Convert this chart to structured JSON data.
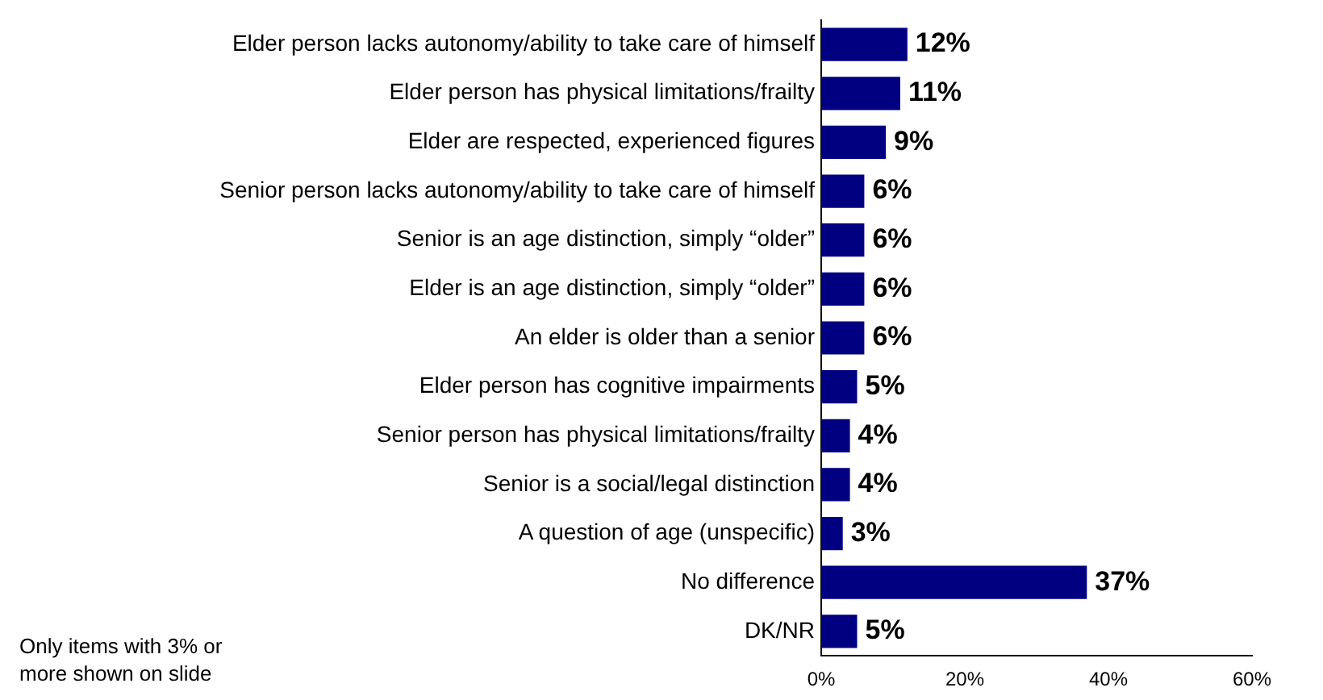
{
  "chart_data": {
    "type": "bar",
    "orientation": "horizontal",
    "categories": [
      "Elder person lacks autonomy/ability to take care of himself",
      "Elder person has physical limitations/frailty",
      "Elder are respected, experienced figures",
      "Senior person lacks autonomy/ability to take care of himself",
      "Senior is an age distinction, simply “older”",
      "Elder is an age distinction, simply “older”",
      "An elder is older than a senior",
      "Elder person has cognitive impairments",
      "Senior person has physical limitations/frailty",
      "Senior is a social/legal distinction",
      "A question of age (unspecific)",
      "No difference",
      "DK/NR"
    ],
    "values": [
      12,
      11,
      9,
      6,
      6,
      6,
      6,
      5,
      4,
      4,
      3,
      37,
      5
    ],
    "value_labels": [
      "12%",
      "11%",
      "9%",
      "6%",
      "6%",
      "6%",
      "6%",
      "5%",
      "4%",
      "4%",
      "3%",
      "37%",
      "5%"
    ],
    "color": "#000080",
    "xlim": [
      0,
      60
    ],
    "xticks": [
      {
        "value": 0,
        "label": "0%"
      },
      {
        "value": 20,
        "label": "20%"
      },
      {
        "value": 40,
        "label": "40%"
      },
      {
        "value": 60,
        "label": "60%"
      }
    ],
    "grid": false,
    "legend": false,
    "annotations": [
      "Only items with 3% or more shown on slide"
    ]
  }
}
